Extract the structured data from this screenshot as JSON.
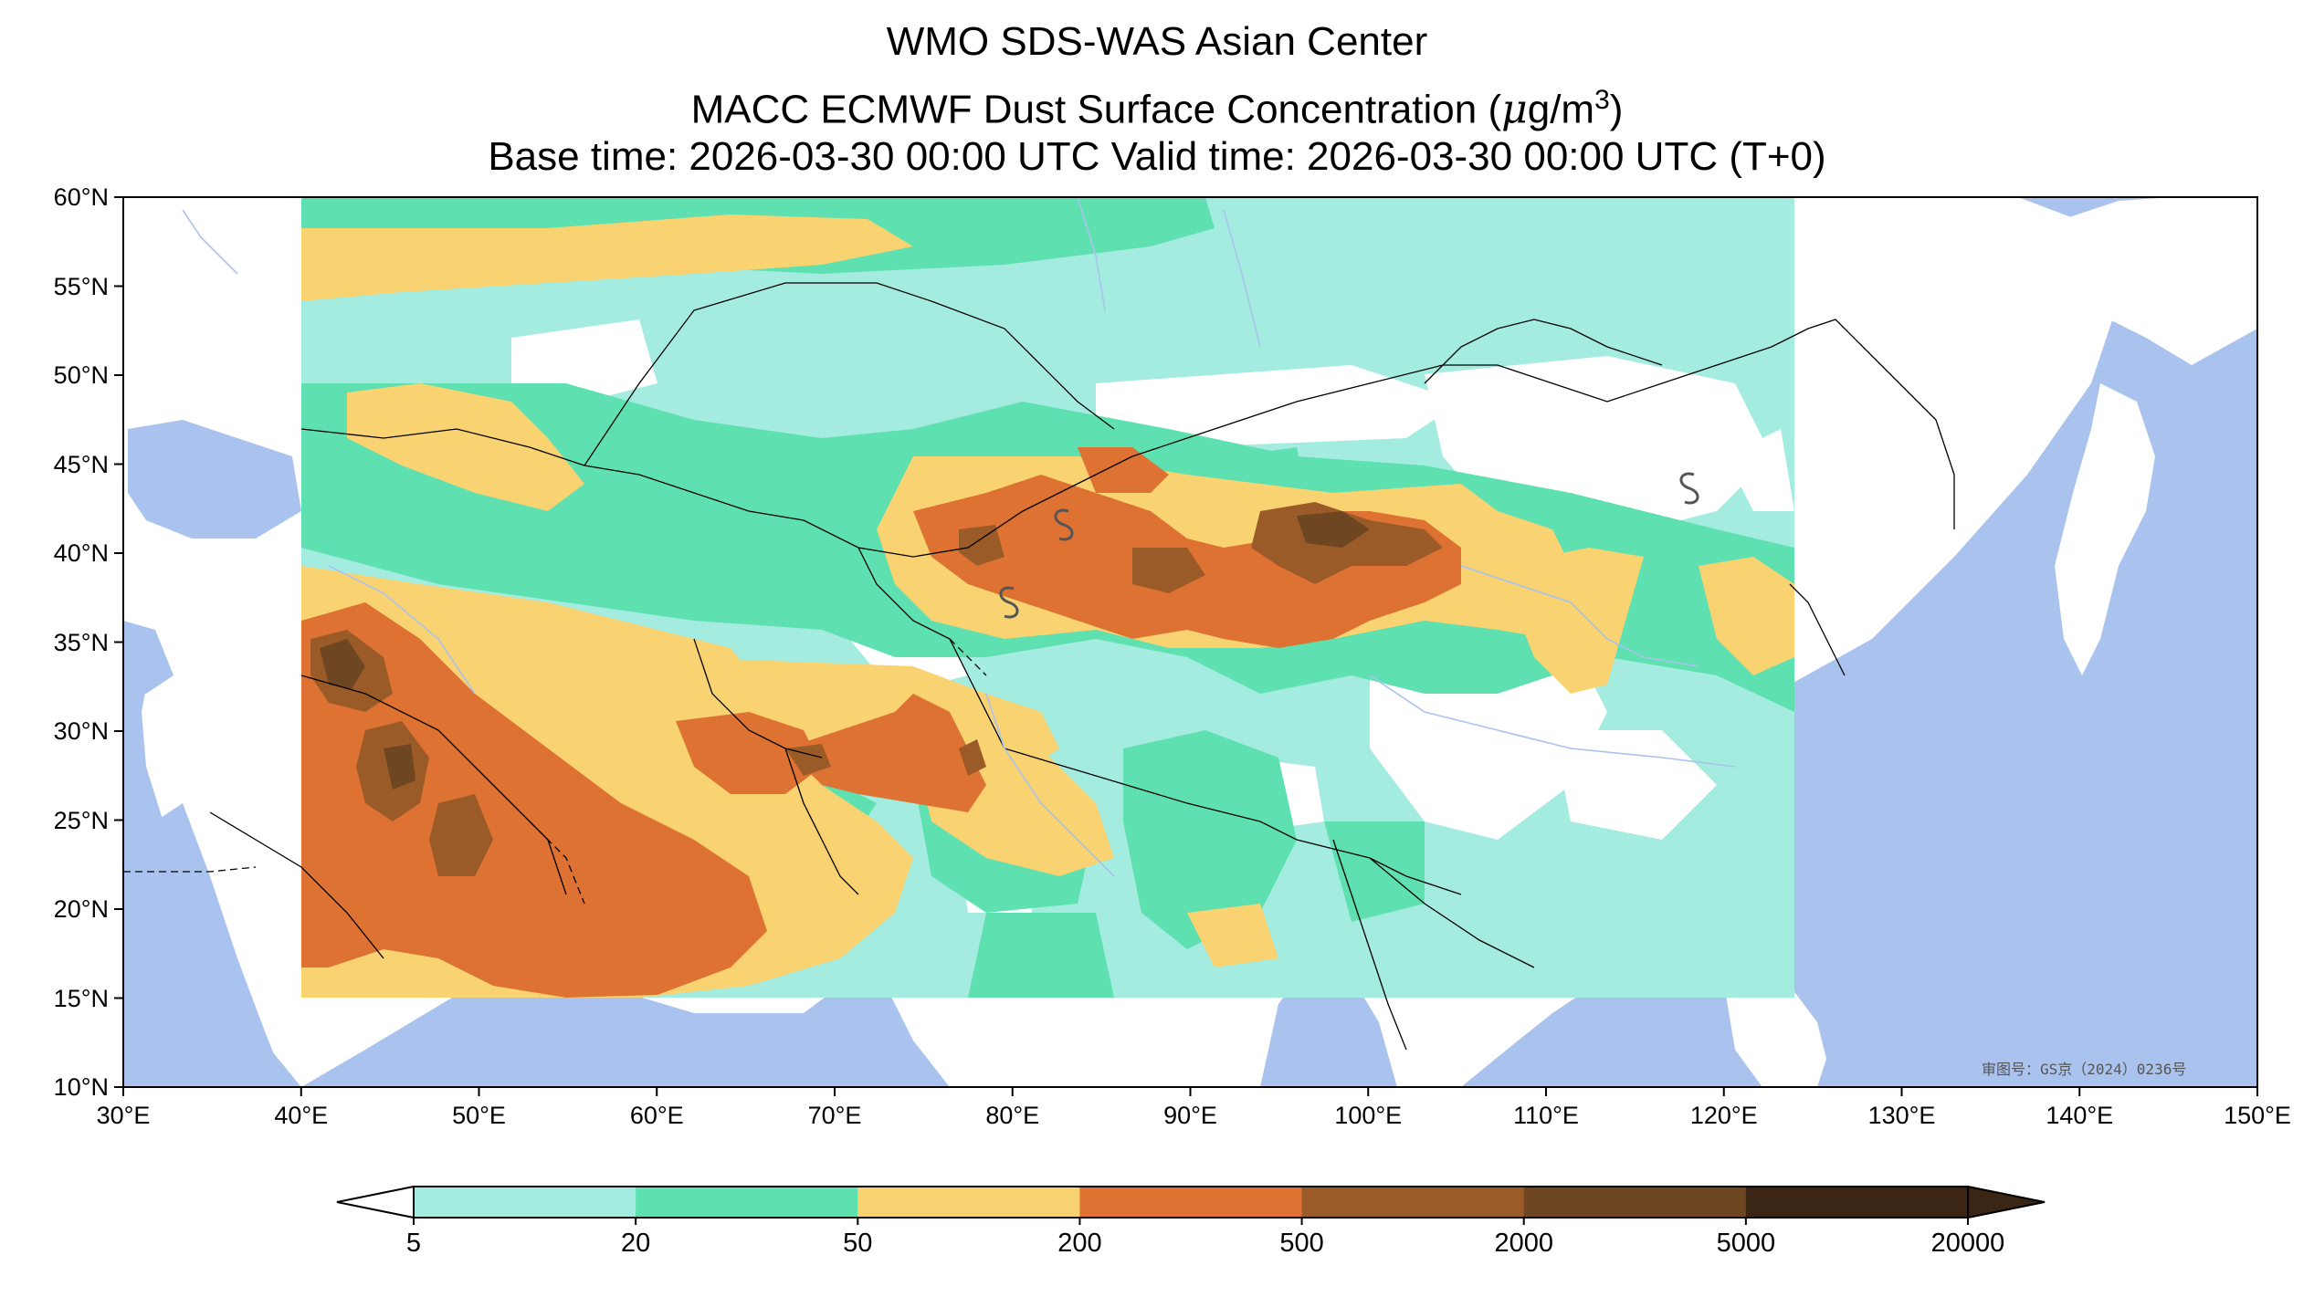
{
  "header": {
    "line1": "WMO SDS-WAS Asian Center",
    "line2_prefix": "MACC ECMWF Dust Surface Concentration (",
    "line2_mu": "μ",
    "line2_unit": "g/m",
    "line2_sup": "3",
    "line2_suffix": ")",
    "line3": "Base time: 2026-03-30 00:00 UTC Valid time: 2026-03-30 00:00 UTC (T+0)"
  },
  "map": {
    "lon_range": [
      30,
      150
    ],
    "lat_range": [
      10,
      60
    ],
    "lat_ticks": [
      "60°N",
      "55°N",
      "50°N",
      "45°N",
      "40°N",
      "35°N",
      "30°N",
      "25°N",
      "20°N",
      "15°N",
      "10°N"
    ],
    "lon_ticks": [
      "30°E",
      "40°E",
      "50°E",
      "60°E",
      "70°E",
      "80°E",
      "90°E",
      "100°E",
      "110°E",
      "120°E",
      "130°E",
      "140°E",
      "150°E"
    ],
    "watermark": "审图号：GS京（2024）0236号",
    "colors": {
      "ocean": "#a9c3ee",
      "land": "#ffffff",
      "border": "#000000",
      "river": "#a9c3ee"
    }
  },
  "colorbar": {
    "levels": [
      "5",
      "20",
      "50",
      "200",
      "500",
      "2000",
      "5000",
      "20000"
    ],
    "colors": [
      "#a4ece0",
      "#5fe0b1",
      "#f9d371",
      "#de7232",
      "#9b5b28",
      "#6e4722",
      "#3b2514"
    ]
  }
}
